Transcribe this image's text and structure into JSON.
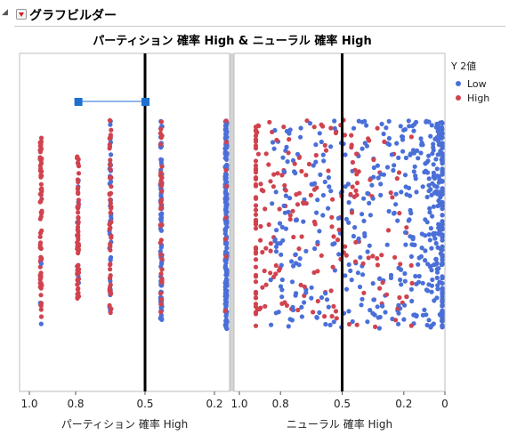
{
  "header": {
    "title": "グラフビルダー",
    "menu_icon": "red-triangle-menu-icon",
    "disclosure_icon": "disclosure-triangle-icon"
  },
  "graph_title": "パーティション 確率 High & ニューラル 確率 High",
  "legend": {
    "title": "Y 2値",
    "items": [
      {
        "label": "Low",
        "color": "#4A6FD8"
      },
      {
        "label": "High",
        "color": "#D0434E"
      }
    ]
  },
  "chart_data": [
    {
      "type": "scatter",
      "title": "",
      "xlabel": "パーティション 確率 High",
      "xlim": [
        1.0,
        0.0
      ],
      "x_reversed": true,
      "xticks": [
        "1.0",
        "0.8",
        "0.5",
        "0.2"
      ],
      "reference_line_x": 0.5,
      "jitter": "vertical",
      "series": [
        {
          "name": "Low",
          "color": "#4A6FD8",
          "x": [
            0.95,
            0.79,
            0.65,
            0.43,
            0.15
          ],
          "counts": [
            4,
            10,
            40,
            100,
            220
          ]
        },
        {
          "name": "High",
          "color": "#D0434E",
          "x": [
            0.95,
            0.79,
            0.65,
            0.43,
            0.15
          ],
          "counts": [
            70,
            60,
            50,
            35,
            8
          ]
        }
      ],
      "range_annotation": {
        "x": [
          0.79,
          0.5
        ]
      }
    },
    {
      "type": "scatter",
      "title": "",
      "xlabel": "ニューラル 確率 High",
      "xlim": [
        1.0,
        0.0
      ],
      "x_reversed": true,
      "xticks": [
        "1.0",
        "0.8",
        "0.5",
        "0.2",
        "0"
      ],
      "reference_line_x": 0.5,
      "jitter": "vertical",
      "series": [
        {
          "name": "Low",
          "color": "#4A6FD8",
          "count": 520
        },
        {
          "name": "High",
          "color": "#D0434E",
          "count": 230
        }
      ]
    }
  ]
}
